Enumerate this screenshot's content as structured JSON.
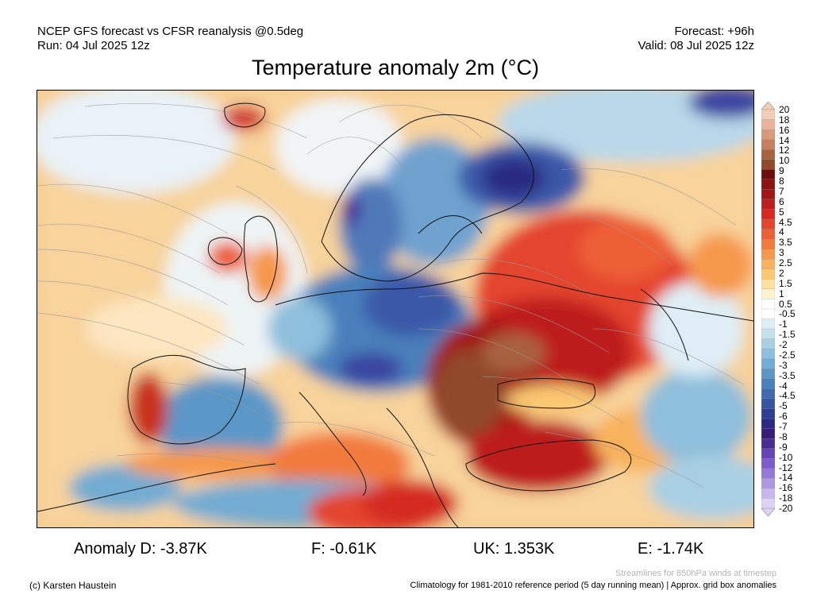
{
  "header": {
    "line1_left": "NCEP GFS forecast vs CFSR reanalysis @0.5deg",
    "line2_left": "Run: 04 Jul 2025 12z",
    "line1_right": "Forecast: +96h",
    "line2_right": "Valid: 08 Jul 2025 12z"
  },
  "title": "Temperature anomaly 2m (°C)",
  "legend": {
    "labels": [
      "20",
      "18",
      "16",
      "14",
      "12",
      "10",
      "9",
      "8",
      "7",
      "6",
      "5",
      "4.5",
      "4",
      "3.5",
      "3",
      "2.5",
      "2",
      "1.5",
      "1",
      "0.5",
      "-0.5",
      "-1",
      "-1.5",
      "-2",
      "-2.5",
      "-3",
      "-3.5",
      "-4",
      "-4.5",
      "-5",
      "-6",
      "-7",
      "-8",
      "-9",
      "-10",
      "-12",
      "-14",
      "-16",
      "-18",
      "-20"
    ],
    "colors": [
      "#f4cdb9",
      "#e8b39a",
      "#d69a7c",
      "#c4805f",
      "#a9623f",
      "#8f4a2c",
      "#6e0d0d",
      "#8d1212",
      "#a31515",
      "#bd1d1d",
      "#d42a22",
      "#e4452d",
      "#ed5f34",
      "#f27a3e",
      "#f6984b",
      "#f9b25b",
      "#fbc872",
      "#fde0a0",
      "#fff3cf",
      "#ffffff",
      "#ffffff",
      "#dfeef6",
      "#c6e1ee",
      "#a9cfe4",
      "#8ebfdc",
      "#72acd2",
      "#5a97c7",
      "#4a80bb",
      "#3f6aae",
      "#3655a0",
      "#2e3f92",
      "#2c2983",
      "#371d79",
      "#4a2b95",
      "#6644b6",
      "#7d5cc8",
      "#9678d8",
      "#ae97e3",
      "#c7b7ee",
      "#ddd3f6"
    ]
  },
  "stats": {
    "anomaly_d": "Anomaly D: -3.87K",
    "f": "F: -0.61K",
    "uk": "UK: 1.353K",
    "e": "E: -1.74K"
  },
  "footer": {
    "streamline_note": "Streamlines for 850hPa winds at timestep",
    "copyright": "(c) Karsten Haustein",
    "climatology": "Climatology for 1981-2010 reference period (5 day running mean) | Approx. grid box anomalies"
  }
}
